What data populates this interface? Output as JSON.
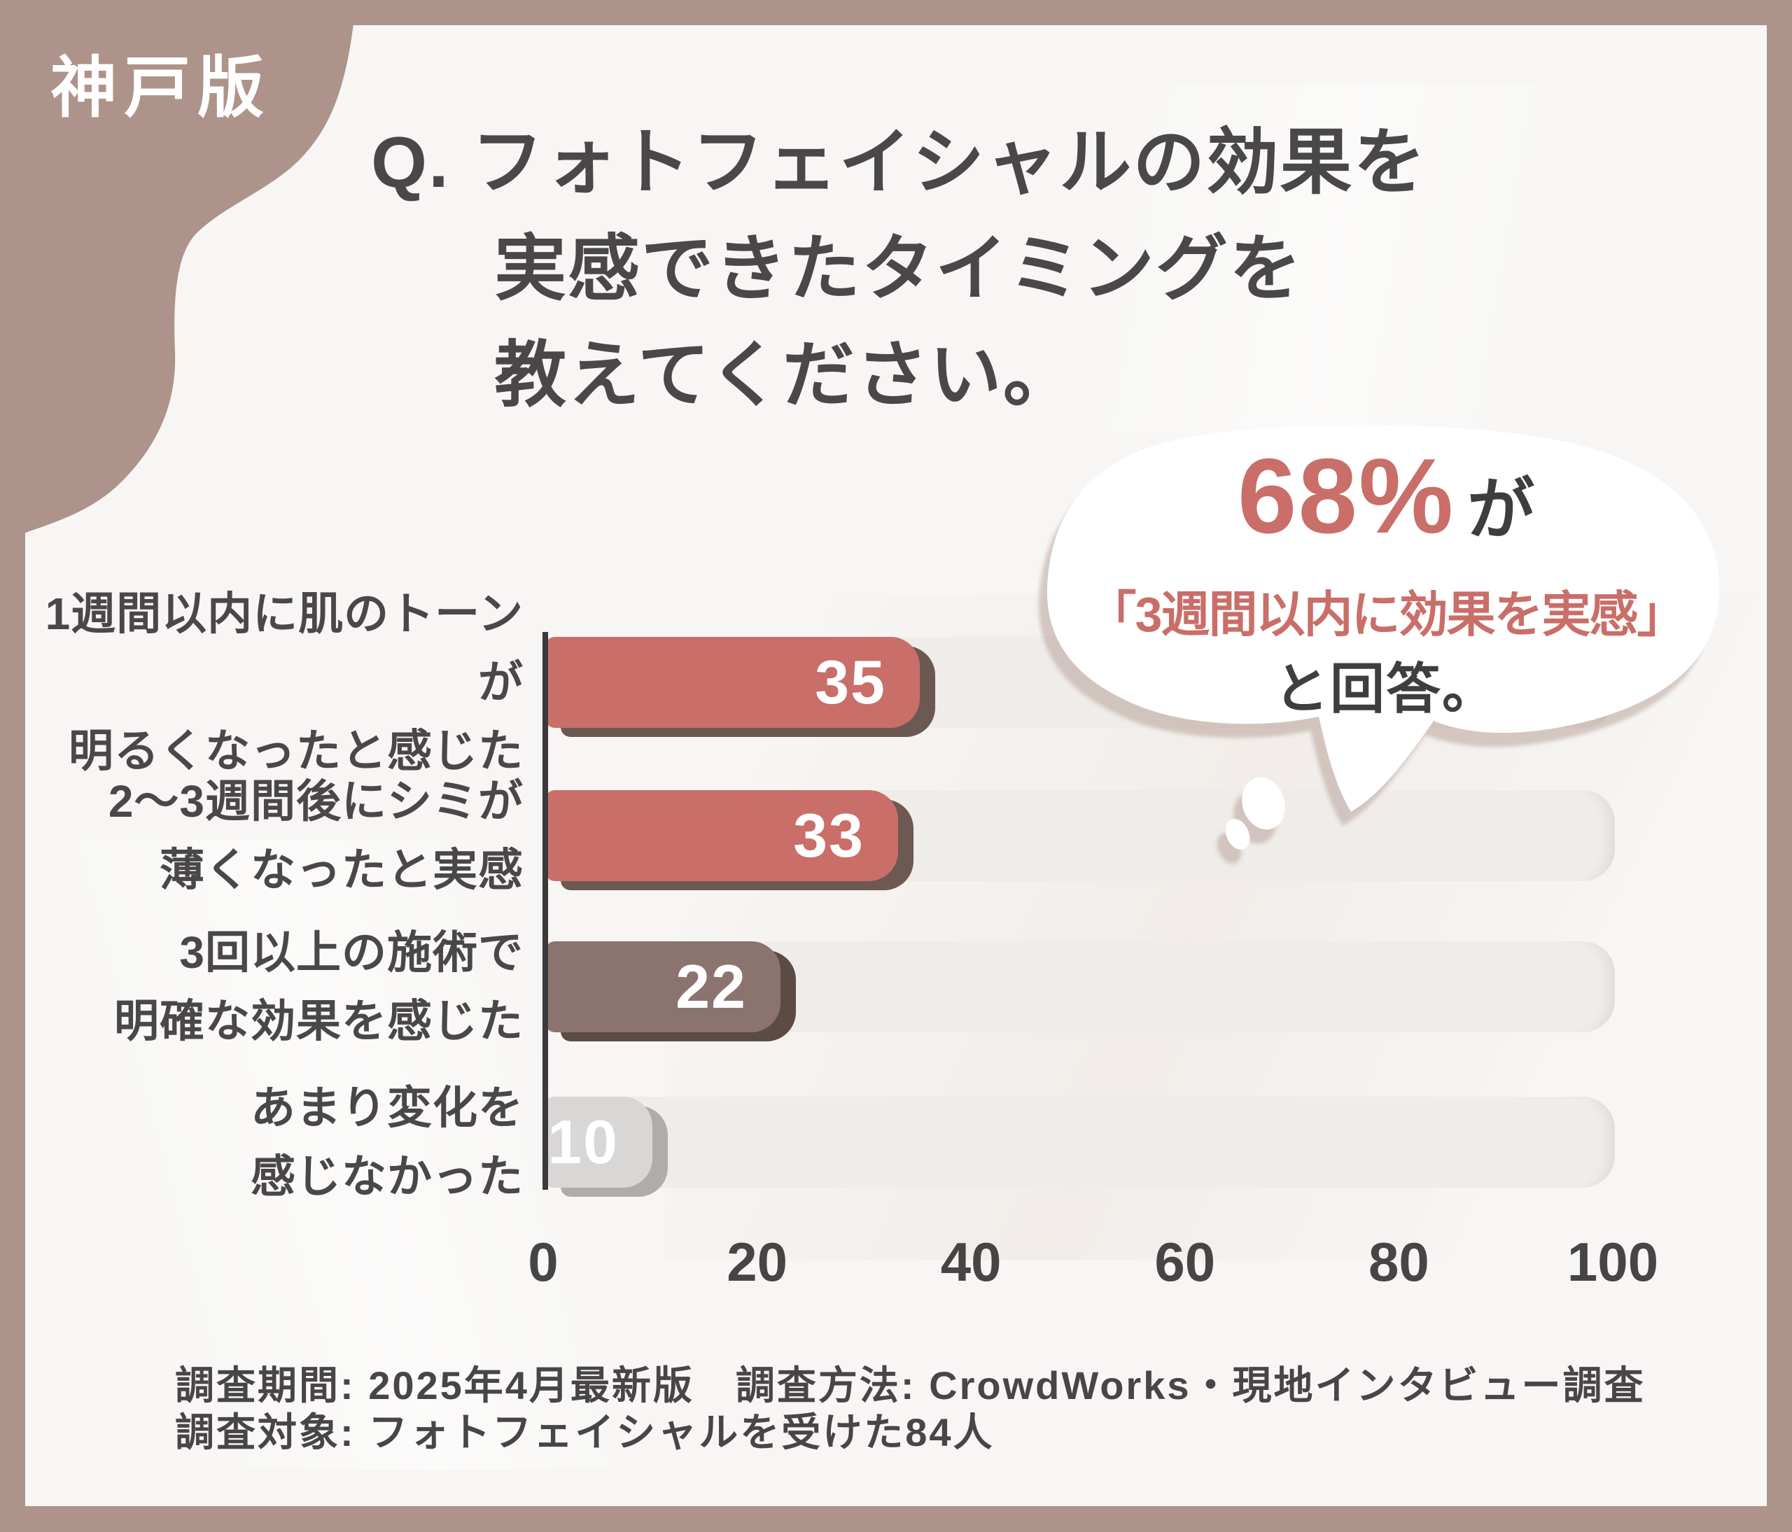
{
  "badge": {
    "label": "神戸版"
  },
  "title": {
    "line1": "Q. フォトフェイシャルの効果を",
    "line2": "実感できたタイミングを",
    "line3": "教えてください。"
  },
  "bubble": {
    "stat": "68%",
    "stat_suffix": "が",
    "quote": "「3週間以内に効果を実感」",
    "answer": "と回答。"
  },
  "chart_data": {
    "type": "bar",
    "orientation": "horizontal",
    "title": "フォトフェイシャルの効果を実感できたタイミング",
    "categories": [
      [
        "1週間以内に肌のトーンが",
        "明るくなったと感じた"
      ],
      [
        "2〜3週間後にシミが",
        "薄くなったと実感"
      ],
      [
        "3回以上の施術で",
        "明確な効果を感じた"
      ],
      [
        "あまり変化を",
        "感じなかった"
      ]
    ],
    "values": [
      35,
      33,
      22,
      10
    ],
    "bar_colors": [
      "#C96E68",
      "#C96E68",
      "#8B7470",
      "#D9D7D5"
    ],
    "bar_shadow_colors": [
      "#6C5951",
      "#6C5951",
      "#5C4B45",
      "#AFADAB"
    ],
    "value_label_color": "#FFFFFF",
    "xlim": [
      0,
      100
    ],
    "xticks": [
      0,
      20,
      40,
      60,
      80,
      100
    ],
    "grid": false,
    "legend": "none"
  },
  "footer": {
    "line1": "調査期間: 2025年4月最新版　調査方法: CrowdWorks・現地インタビュー調査",
    "line2": "調査対象: フォトフェイシャルを受けた84人"
  },
  "colors": {
    "frame": "#AD9389",
    "bg": "#F7F6F4",
    "accent": "#C96E68",
    "text-dark": "#494747",
    "track": "#EFECE9",
    "axis": "#3B3939",
    "white": "#FFFFFF"
  }
}
